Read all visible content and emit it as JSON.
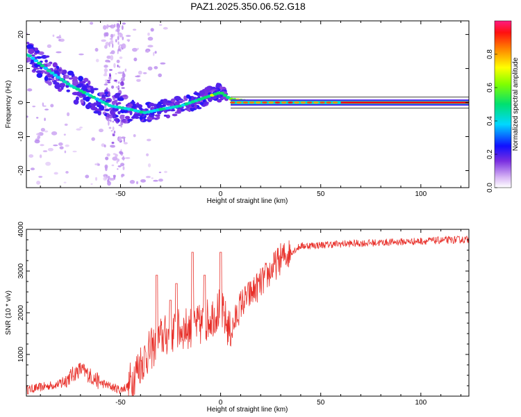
{
  "figure": {
    "title": "PAZ1.2025.350.06.52.G18"
  },
  "chart_data": [
    {
      "type": "heatmap",
      "xlabel": "Height of straight line (km)",
      "ylabel": "Frequency (Hz)",
      "xlim": [
        -97,
        124
      ],
      "ylim": [
        -25,
        24
      ],
      "x_ticks": [
        -50,
        0,
        50,
        100
      ],
      "y_ticks": [
        -20,
        -10,
        0,
        10,
        20
      ],
      "colorbar": {
        "label": "Normalized spectral amplitude",
        "range": [
          0,
          1
        ],
        "ticks": [
          0.0,
          0.2,
          0.4,
          0.6,
          0.8
        ]
      },
      "ridge": [
        {
          "x": -96,
          "f": 14
        },
        {
          "x": -85,
          "f": 9
        },
        {
          "x": -75,
          "f": 5
        },
        {
          "x": -65,
          "f": 2
        },
        {
          "x": -55,
          "f": -1
        },
        {
          "x": -45,
          "f": -2
        },
        {
          "x": -38,
          "f": -3
        },
        {
          "x": -30,
          "f": -2
        },
        {
          "x": -20,
          "f": -1
        },
        {
          "x": -10,
          "f": 1
        },
        {
          "x": 0,
          "f": 3
        },
        {
          "x": 5,
          "f": 1
        },
        {
          "x": 20,
          "f": 0
        },
        {
          "x": 124,
          "f": 0
        }
      ]
    },
    {
      "type": "line",
      "xlabel": "Height of straight line (km)",
      "ylabel": "SNR (10 * v/v)",
      "xlim": [
        -97,
        124
      ],
      "ylim": [
        0,
        4000
      ],
      "x_ticks": [
        -50,
        0,
        50,
        100
      ],
      "y_ticks": [
        1000,
        2000,
        3000,
        4000
      ],
      "color": "#e8302a",
      "trend": [
        {
          "x": -97,
          "y": 150
        },
        {
          "x": -80,
          "y": 300
        },
        {
          "x": -70,
          "y": 650
        },
        {
          "x": -60,
          "y": 320
        },
        {
          "x": -50,
          "y": 150
        },
        {
          "x": -46,
          "y": 250
        },
        {
          "x": -40,
          "y": 800
        },
        {
          "x": -30,
          "y": 1400
        },
        {
          "x": -20,
          "y": 1600
        },
        {
          "x": -10,
          "y": 1700
        },
        {
          "x": 0,
          "y": 2100
        },
        {
          "x": 5,
          "y": 1500
        },
        {
          "x": 10,
          "y": 2200
        },
        {
          "x": 20,
          "y": 2700
        },
        {
          "x": 30,
          "y": 3300
        },
        {
          "x": 40,
          "y": 3600
        },
        {
          "x": 60,
          "y": 3650
        },
        {
          "x": 90,
          "y": 3700
        },
        {
          "x": 124,
          "y": 3760
        }
      ],
      "spikes": [
        {
          "x": -32,
          "y": 2900
        },
        {
          "x": -25,
          "y": 2300
        },
        {
          "x": -22,
          "y": 2700
        },
        {
          "x": -14,
          "y": 3450
        },
        {
          "x": -8,
          "y": 2900
        },
        {
          "x": 0,
          "y": 3450
        }
      ]
    }
  ]
}
